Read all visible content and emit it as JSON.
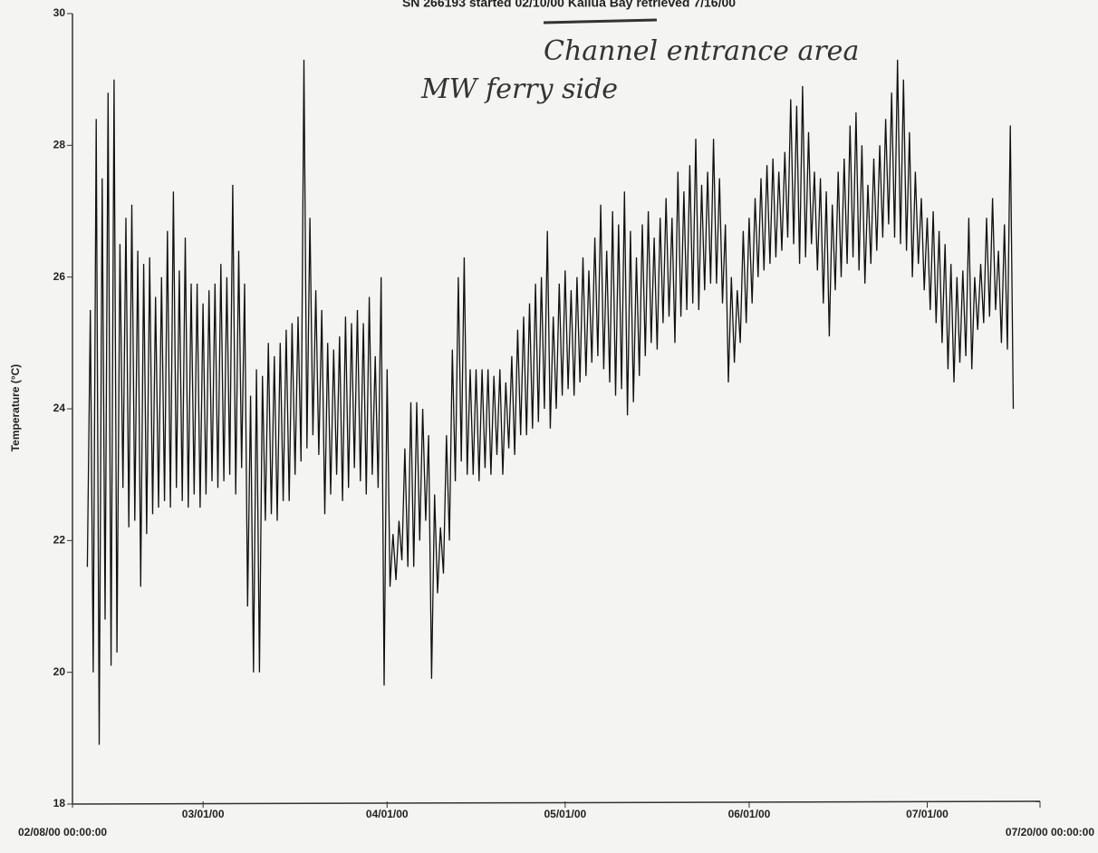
{
  "chart_data": {
    "type": "line",
    "title": "SN 266193 started 02/10/00 Kailua Bay retrieved 7/16/00",
    "y_label": "Temperature  (°C)",
    "annotations": [
      "Channel entrance area",
      "MW ferry side"
    ],
    "color": "#111111",
    "xlim": [
      0,
      163
    ],
    "xticks": [
      {
        "value": 0,
        "label": "02/08/00 00:00:00"
      },
      {
        "value": 22,
        "label": "03/01/00"
      },
      {
        "value": 53,
        "label": "04/01/00"
      },
      {
        "value": 83,
        "label": "05/01/00"
      },
      {
        "value": 114,
        "label": "06/01/00"
      },
      {
        "value": 144,
        "label": "07/01/00"
      },
      {
        "value": 163,
        "label": "07/20/00 00:00:00"
      }
    ],
    "ylim": [
      18,
      30
    ],
    "yticks": [
      18,
      20,
      22,
      24,
      26,
      28,
      30
    ],
    "x": [
      2.5,
      3,
      3.5,
      4,
      4.5,
      5,
      5.5,
      6,
      6.5,
      7,
      7.5,
      8,
      8.5,
      9,
      9.5,
      10,
      10.5,
      11,
      11.5,
      12,
      12.5,
      13,
      13.5,
      14,
      14.5,
      15,
      15.5,
      16,
      16.5,
      17,
      17.5,
      18,
      18.5,
      19,
      19.5,
      20,
      20.5,
      21,
      21.5,
      22,
      22.5,
      23,
      23.5,
      24,
      24.5,
      25,
      25.5,
      26,
      26.5,
      27,
      27.5,
      28,
      28.5,
      29,
      29.5,
      30,
      30.5,
      31,
      31.5,
      32,
      32.5,
      33,
      33.5,
      34,
      34.5,
      35,
      35.5,
      36,
      36.5,
      37,
      37.5,
      38,
      38.5,
      39,
      39.5,
      40,
      40.5,
      41,
      41.5,
      42,
      42.5,
      43,
      43.5,
      44,
      44.5,
      45,
      45.5,
      46,
      46.5,
      47,
      47.5,
      48,
      48.5,
      49,
      49.5,
      50,
      50.5,
      51,
      51.5,
      52,
      52.5,
      53,
      53.5,
      54,
      54.5,
      55,
      55.5,
      56,
      56.5,
      57,
      57.5,
      58,
      58.5,
      59,
      59.5,
      60,
      60.5,
      61,
      61.5,
      62,
      62.5,
      63,
      63.5,
      64,
      64.5,
      65,
      65.5,
      66,
      66.5,
      67,
      67.5,
      68,
      68.5,
      69,
      69.5,
      70,
      70.5,
      71,
      71.5,
      72,
      72.5,
      73,
      73.5,
      74,
      74.5,
      75,
      75.5,
      76,
      76.5,
      77,
      77.5,
      78,
      78.5,
      79,
      79.5,
      80,
      80.5,
      81,
      81.5,
      82,
      82.5,
      83,
      83.5,
      84,
      84.5,
      85,
      85.5,
      86,
      86.5,
      87,
      87.5,
      88,
      88.5,
      89,
      89.5,
      90,
      90.5,
      91,
      91.5,
      92,
      92.5,
      93,
      93.5,
      94,
      94.5,
      95,
      95.5,
      96,
      96.5,
      97,
      97.5,
      98,
      98.5,
      99,
      99.5,
      100,
      100.5,
      101,
      101.5,
      102,
      102.5,
      103,
      103.5,
      104,
      104.5,
      105,
      105.5,
      106,
      106.5,
      107,
      107.5,
      108,
      108.5,
      109,
      109.5,
      110,
      110.5,
      111,
      111.5,
      112,
      112.5,
      113,
      113.5,
      114,
      114.5,
      115,
      115.5,
      116,
      116.5,
      117,
      117.5,
      118,
      118.5,
      119,
      119.5,
      120,
      120.5,
      121,
      121.5,
      122,
      122.5,
      123,
      123.5,
      124,
      124.5,
      125,
      125.5,
      126,
      126.5,
      127,
      127.5,
      128,
      128.5,
      129,
      129.5,
      130,
      130.5,
      131,
      131.5,
      132,
      132.5,
      133,
      133.5,
      134,
      134.5,
      135,
      135.5,
      136,
      136.5,
      137,
      137.5,
      138,
      138.5,
      139,
      139.5,
      140,
      140.5,
      141,
      141.5,
      142,
      142.5,
      143,
      143.5,
      144,
      144.5,
      145,
      145.5,
      146,
      146.5,
      147,
      147.5,
      148,
      148.5,
      149,
      149.5,
      150,
      150.5,
      151,
      151.5,
      152,
      152.5,
      153,
      153.5,
      154,
      154.5,
      155,
      155.5,
      156,
      156.5,
      157,
      157.5,
      158,
      158.5
    ],
    "values": [
      21.6,
      25.5,
      20.0,
      28.4,
      18.9,
      27.5,
      20.8,
      28.8,
      20.1,
      29.0,
      20.3,
      26.5,
      22.8,
      26.9,
      22.2,
      27.1,
      22.3,
      26.4,
      21.3,
      26.2,
      22.1,
      26.3,
      22.4,
      25.7,
      22.5,
      26.0,
      22.6,
      26.7,
      22.5,
      27.3,
      22.8,
      26.1,
      22.6,
      26.6,
      22.5,
      25.9,
      22.7,
      25.9,
      22.5,
      25.6,
      22.7,
      25.8,
      22.9,
      25.9,
      22.8,
      26.2,
      22.9,
      26.0,
      23.0,
      27.4,
      22.7,
      26.4,
      23.1,
      25.9,
      21.0,
      24.2,
      20.0,
      24.6,
      20.0,
      24.5,
      22.3,
      25.0,
      22.4,
      24.8,
      22.3,
      25.0,
      22.6,
      25.2,
      22.6,
      25.3,
      23.0,
      25.4,
      23.2,
      29.3,
      23.4,
      26.9,
      23.6,
      25.8,
      23.3,
      25.5,
      22.4,
      25.0,
      22.7,
      24.9,
      23.0,
      25.1,
      22.6,
      25.4,
      22.8,
      25.3,
      23.1,
      25.5,
      22.9,
      25.3,
      22.7,
      25.7,
      23.0,
      24.8,
      22.8,
      26.0,
      19.8,
      24.6,
      21.3,
      22.1,
      21.4,
      22.3,
      21.7,
      23.4,
      21.6,
      24.1,
      21.6,
      24.1,
      22.0,
      24.0,
      22.3,
      23.6,
      19.9,
      22.7,
      21.2,
      22.2,
      21.5,
      23.6,
      22.0,
      24.9,
      22.9,
      26.0,
      23.2,
      26.3,
      23.0,
      24.6,
      23.0,
      24.6,
      22.9,
      24.6,
      23.1,
      24.6,
      23.0,
      24.5,
      23.3,
      24.6,
      23.0,
      24.4,
      23.4,
      24.8,
      23.3,
      25.2,
      23.6,
      25.4,
      23.6,
      25.6,
      23.7,
      25.9,
      23.8,
      26.0,
      24.0,
      26.7,
      23.7,
      25.4,
      24.0,
      25.9,
      24.2,
      26.1,
      24.3,
      25.8,
      24.2,
      26.0,
      24.4,
      26.3,
      24.5,
      26.1,
      24.7,
      26.6,
      24.8,
      27.1,
      24.6,
      26.4,
      24.4,
      27.0,
      24.2,
      26.8,
      24.3,
      27.3,
      23.9,
      26.7,
      24.1,
      26.3,
      24.5,
      26.8,
      24.8,
      27.0,
      25.0,
      26.6,
      24.9,
      26.9,
      25.3,
      27.2,
      25.4,
      26.9,
      25.0,
      27.6,
      25.4,
      27.3,
      25.5,
      27.7,
      25.6,
      28.1,
      25.5,
      27.4,
      25.8,
      27.6,
      25.9,
      28.1,
      25.9,
      27.5,
      25.6,
      26.8,
      24.4,
      26.0,
      24.7,
      25.8,
      25.0,
      26.7,
      25.3,
      26.9,
      25.6,
      27.2,
      26.0,
      27.5,
      26.1,
      27.7,
      26.2,
      27.8,
      26.3,
      27.6,
      26.4,
      27.9,
      26.6,
      28.7,
      26.5,
      28.6,
      26.2,
      28.9,
      26.3,
      28.2,
      26.5,
      27.6,
      26.1,
      27.5,
      25.6,
      27.3,
      25.1,
      27.1,
      25.8,
      27.6,
      26.0,
      27.8,
      26.2,
      28.3,
      26.3,
      28.5,
      26.1,
      28.0,
      25.9,
      27.4,
      26.2,
      27.8,
      26.4,
      28.0,
      26.6,
      28.4,
      26.8,
      28.8,
      26.6,
      29.3,
      26.5,
      29.0,
      26.4,
      28.2,
      26.0,
      27.6,
      26.2,
      27.2,
      25.8,
      26.9,
      25.5,
      27.0,
      25.3,
      26.7,
      25.0,
      26.5,
      24.6,
      26.2,
      24.4,
      26.0,
      24.7,
      26.1,
      24.8,
      26.9,
      24.6,
      26.0,
      25.2,
      26.2,
      25.3,
      26.9,
      25.4,
      27.2,
      25.5,
      26.4,
      25.0,
      26.8,
      24.9,
      28.3,
      24.0
    ]
  }
}
